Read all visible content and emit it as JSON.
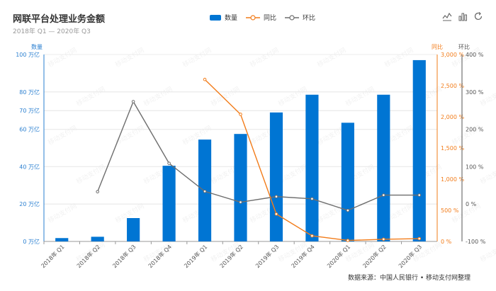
{
  "title": "网联平台处理业务金额",
  "subtitle": "2018年 Q1 — 2020年 Q3",
  "source": "数据来源：中国人民银行 • 移动支付网整理",
  "watermark": "移动支付网",
  "legend": {
    "bars": "数量",
    "yoy": "同比",
    "qoq": "环比"
  },
  "toolbox": [
    "line-chart-icon",
    "bar-chart-icon",
    "refresh-icon"
  ],
  "colors": {
    "bars": "#0075d3",
    "yoy": "#f27c1a",
    "qoq": "#6e6e6e",
    "grid": "#e3e3e3"
  },
  "chart_data": {
    "type": "bar",
    "categories": [
      "2018年 Q1",
      "2018年 Q2",
      "2018年 Q3",
      "2018年 Q4",
      "2019年 Q1",
      "2019年 Q2",
      "2019年 Q3",
      "2019年 Q4",
      "2020年 Q1",
      "2020年 Q2",
      "2020年 Q3"
    ],
    "series": [
      {
        "name": "数量",
        "type": "bar",
        "axis": "left",
        "values": [
          1.8,
          2.5,
          12.5,
          40.5,
          54.5,
          57.5,
          69,
          78.5,
          63.5,
          78.5,
          97
        ]
      },
      {
        "name": "同比",
        "type": "line",
        "axis": "right_inner",
        "values": [
          null,
          null,
          null,
          null,
          2600,
          2040,
          440,
          90,
          16,
          35,
          45
        ]
      },
      {
        "name": "环比",
        "type": "line",
        "axis": "right_outer",
        "values": [
          null,
          33,
          274,
          109,
          34,
          5,
          20,
          14,
          -17,
          24,
          24
        ]
      }
    ],
    "axes": {
      "left": {
        "label": "数量",
        "ylim": [
          0,
          100
        ],
        "ticks": [
          "0 万亿",
          "20 万亿",
          "40 万亿",
          "60 万亿",
          "70 万亿",
          "80 万亿",
          "100 万亿"
        ],
        "tick_values": [
          0,
          20,
          40,
          60,
          70,
          80,
          100
        ]
      },
      "right_inner": {
        "label": "同比",
        "ylim": [
          0,
          3000
        ],
        "ticks": [
          "0 %",
          "500 %",
          "1,000 %",
          "1,500 %",
          "2,000 %",
          "2,500 %",
          "3,000 %"
        ],
        "tick_values": [
          0,
          500,
          1000,
          1500,
          2000,
          2500,
          3000
        ]
      },
      "right_outer": {
        "label": "环比",
        "ylim": [
          -100,
          400
        ],
        "ticks": [
          "-100 %",
          "0 %",
          "100 %",
          "200 %",
          "300 %",
          "400 %"
        ],
        "tick_values": [
          -100,
          0,
          100,
          200,
          300,
          400
        ]
      }
    },
    "grid": true,
    "legend_position": "top-center"
  }
}
